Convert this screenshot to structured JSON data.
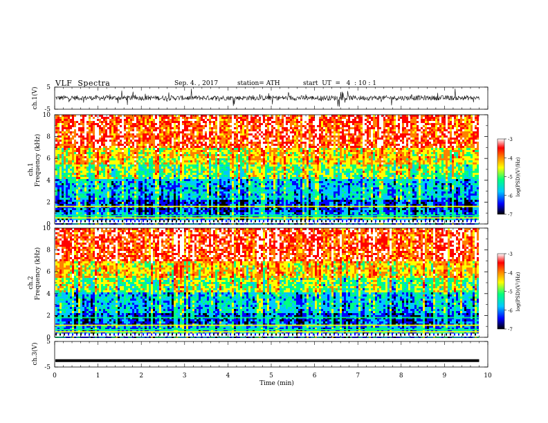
{
  "header": {
    "title": "VLF  Spectra",
    "date": "Sep. 4. , 2017",
    "station": "station= ATH",
    "start": "start  UT  =   4  : 10 : 1"
  },
  "chart_data": {
    "type": "heatmap",
    "x": {
      "label": "Time  (min)",
      "range": [
        0,
        10
      ],
      "ticks": [
        "0",
        "1",
        "2",
        "3",
        "4",
        "5",
        "6",
        "7",
        "8",
        "9",
        "10"
      ],
      "data_end": 9.8
    },
    "panels": [
      {
        "id": "ch1-waveform",
        "type": "line",
        "ylabel": "ch.1(V)",
        "ylim": [
          -5,
          5
        ],
        "yticks": [
          "5",
          "-5"
        ]
      },
      {
        "id": "ch1-spectrogram",
        "type": "heatmap",
        "ylabel_channel": "ch.1",
        "ylabel": "Frequency  (kHz)",
        "ylim": [
          0,
          10
        ],
        "yticks": [
          "0",
          "2",
          "4",
          "6",
          "8",
          "10"
        ],
        "colorbar": {
          "label": "log(PSD)(V²/Hz)",
          "range": [
            -7,
            -3
          ],
          "ticks": [
            "-3",
            "-4",
            "-5",
            "-6",
            "-7"
          ]
        }
      },
      {
        "id": "ch2-spectrogram",
        "type": "heatmap",
        "ylabel_channel": "ch.2",
        "ylabel": "Frequency  (kHz)",
        "ylim": [
          0,
          10
        ],
        "yticks": [
          "0",
          "2",
          "4",
          "6",
          "8",
          "10"
        ],
        "colorbar": {
          "label": "log(PSD)(V²/Hz)",
          "range": [
            -7,
            -3
          ],
          "ticks": [
            "-3",
            "-4",
            "-5",
            "-6",
            "-7"
          ]
        }
      },
      {
        "id": "ch3-waveform",
        "type": "line",
        "ylabel": "ch.3(V)",
        "ylim": [
          -5,
          5
        ],
        "yticks": [
          "5",
          "-5"
        ],
        "level": -2.5
      }
    ],
    "colormap": [
      "#000000",
      "#0000ff",
      "#00c8ff",
      "#00ff80",
      "#ffff00",
      "#ff8000",
      "#ff0000",
      "#ffffff"
    ]
  }
}
